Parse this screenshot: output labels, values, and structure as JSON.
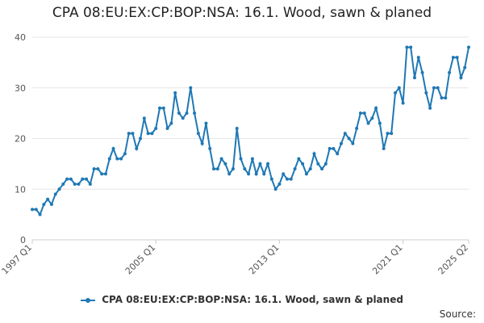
{
  "chart_data": {
    "type": "line",
    "title": "CPA 08:EU:EX:CP:BOP:NSA: 16.1. Wood, sawn & planed",
    "xlabel": "",
    "ylabel": "",
    "ylim": [
      0,
      40
    ],
    "yticks": [
      0,
      10,
      20,
      30,
      40
    ],
    "xtick_labels": [
      "1997 Q1",
      "2005 Q1",
      "2013 Q1",
      "2021 Q1",
      "2025 Q2"
    ],
    "xtick_index": [
      0,
      32,
      64,
      96,
      113
    ],
    "grid": "horizontal",
    "legend_position": "bottom",
    "series": [
      {
        "name": "CPA 08:EU:EX:CP:BOP:NSA: 16.1. Wood, sawn & planed",
        "color": "#1f78b4",
        "values": [
          6,
          6,
          5,
          7,
          8,
          7,
          9,
          10,
          11,
          12,
          12,
          11,
          11,
          12,
          12,
          11,
          14,
          14,
          13,
          13,
          16,
          18,
          16,
          16,
          17,
          21,
          21,
          18,
          20,
          24,
          21,
          21,
          22,
          26,
          26,
          22,
          23,
          29,
          25,
          24,
          25,
          30,
          25,
          21,
          19,
          23,
          18,
          14,
          14,
          16,
          15,
          13,
          14,
          22,
          16,
          14,
          13,
          16,
          13,
          15,
          13,
          15,
          12,
          10,
          11,
          13,
          12,
          12,
          14,
          16,
          15,
          13,
          14,
          17,
          15,
          14,
          15,
          18,
          18,
          17,
          19,
          21,
          20,
          19,
          22,
          25,
          25,
          23,
          24,
          26,
          23,
          18,
          21,
          21,
          29,
          30,
          27,
          38,
          38,
          32,
          36,
          33,
          29,
          26,
          30,
          30,
          28,
          28,
          33,
          36,
          36,
          32,
          34,
          38
        ]
      }
    ]
  },
  "legend": {
    "label": "CPA 08:EU:EX:CP:BOP:NSA: 16.1. Wood, sawn & planed"
  },
  "source": {
    "label": "Source:"
  }
}
